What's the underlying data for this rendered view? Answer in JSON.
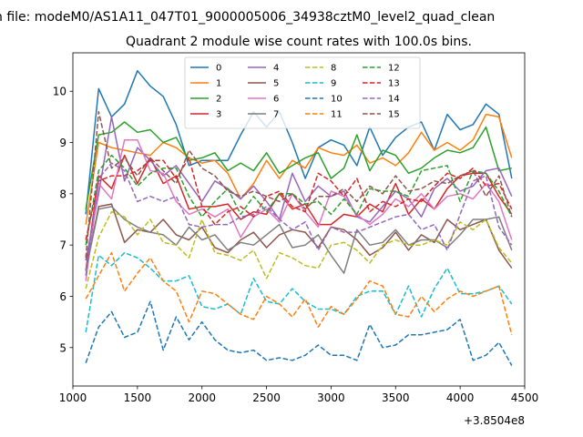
{
  "figure": {
    "suptitle": "n file: modeM0/AS1A11_047T01_9000005006_34938cztM0_level2_quad_clean",
    "title": "Quadrant 2 module wise count rates with 100.0s bins.",
    "offset_label": "+3.8504e8"
  },
  "chart_data": {
    "type": "line",
    "title": "Quadrant 2 module wise count rates with 100.0s bins.",
    "xlabel": "",
    "ylabel": "",
    "x_offset": 385040000,
    "xlim": [
      1000,
      4500
    ],
    "ylim": [
      4.25,
      10.75
    ],
    "xticks": [
      1000,
      1500,
      2000,
      2500,
      3000,
      3500,
      4000,
      4500
    ],
    "yticks": [
      5,
      6,
      7,
      8,
      9,
      10
    ],
    "legend_position": "upper center",
    "grid": false,
    "x": [
      1100,
      1200,
      1300,
      1400,
      1500,
      1600,
      1700,
      1800,
      1900,
      2000,
      2100,
      2200,
      2300,
      2400,
      2500,
      2600,
      2700,
      2800,
      2900,
      3000,
      3100,
      3200,
      3300,
      3400,
      3500,
      3600,
      3700,
      3800,
      3900,
      4000,
      4100,
      4200,
      4300,
      4400
    ],
    "series": [
      {
        "name": "0",
        "color": "#1f77b4",
        "dash": "solid",
        "values": [
          7.6,
          10.05,
          9.5,
          9.75,
          10.4,
          10.1,
          9.9,
          9.35,
          8.55,
          8.65,
          8.65,
          8.65,
          9.15,
          9.6,
          9.3,
          9.6,
          9.0,
          8.3,
          8.9,
          9.05,
          8.95,
          8.55,
          9.3,
          8.75,
          9.1,
          9.3,
          9.4,
          8.85,
          9.55,
          9.25,
          9.35,
          9.75,
          9.55,
          8.3
        ]
      },
      {
        "name": "1",
        "color": "#ff7f0e",
        "dash": "solid",
        "values": [
          7.4,
          9.0,
          8.9,
          8.85,
          8.8,
          8.75,
          9.0,
          8.9,
          8.7,
          8.6,
          8.65,
          8.4,
          7.9,
          8.2,
          8.65,
          8.3,
          8.65,
          8.5,
          8.9,
          8.8,
          8.75,
          8.95,
          8.6,
          8.7,
          8.55,
          8.8,
          9.2,
          8.85,
          9.0,
          8.85,
          9.05,
          9.55,
          9.5,
          8.7
        ]
      },
      {
        "name": "2",
        "color": "#2ca02c",
        "dash": "solid",
        "values": [
          7.7,
          9.15,
          9.2,
          9.4,
          9.2,
          9.25,
          9.0,
          9.1,
          8.65,
          8.7,
          8.8,
          8.45,
          8.6,
          8.45,
          8.8,
          8.4,
          8.55,
          8.7,
          8.8,
          8.3,
          8.5,
          9.15,
          8.45,
          8.85,
          8.75,
          8.4,
          8.5,
          8.7,
          8.85,
          8.8,
          8.9,
          9.3,
          8.45,
          8.5
        ]
      },
      {
        "name": "3",
        "color": "#d62728",
        "dash": "solid",
        "values": [
          6.5,
          8.35,
          8.1,
          8.75,
          8.2,
          8.7,
          8.2,
          8.35,
          7.7,
          7.75,
          7.75,
          7.8,
          7.5,
          7.65,
          7.6,
          8.0,
          7.7,
          7.8,
          7.4,
          7.4,
          7.6,
          7.55,
          7.8,
          7.65,
          8.2,
          7.6,
          7.9,
          7.7,
          8.1,
          8.35,
          8.4,
          8.4,
          7.95,
          7.6
        ]
      },
      {
        "name": "4",
        "color": "#9467bd",
        "dash": "solid",
        "values": [
          6.7,
          8.0,
          9.5,
          8.25,
          8.9,
          8.65,
          8.35,
          8.55,
          8.2,
          7.85,
          8.25,
          8.1,
          7.9,
          8.15,
          7.85,
          7.5,
          8.4,
          7.85,
          8.15,
          7.95,
          8.05,
          7.55,
          7.45,
          7.75,
          8.05,
          7.9,
          7.55,
          8.1,
          8.3,
          8.05,
          8.15,
          8.45,
          8.5,
          7.95
        ]
      },
      {
        "name": "5",
        "color": "#8c564b",
        "dash": "solid",
        "values": [
          6.5,
          7.75,
          7.8,
          7.05,
          7.3,
          7.25,
          7.5,
          7.2,
          7.1,
          7.35,
          6.95,
          6.85,
          7.1,
          7.25,
          6.95,
          7.2,
          7.3,
          7.25,
          6.95,
          7.35,
          7.3,
          7.1,
          6.8,
          6.95,
          7.25,
          6.9,
          7.2,
          7.05,
          7.5,
          7.3,
          7.4,
          7.5,
          6.9,
          6.55
        ]
      },
      {
        "name": "6",
        "color": "#e377c2",
        "dash": "solid",
        "values": [
          6.3,
          8.2,
          7.9,
          9.05,
          9.05,
          8.45,
          8.4,
          7.85,
          7.6,
          7.7,
          7.55,
          7.7,
          7.15,
          7.55,
          7.7,
          7.45,
          8.0,
          7.65,
          7.35,
          8.05,
          7.95,
          7.6,
          7.4,
          7.6,
          7.9,
          7.75,
          8.0,
          7.7,
          7.95,
          8.0,
          7.9,
          8.2,
          7.85,
          7.1
        ]
      },
      {
        "name": "7",
        "color": "#7f7f7f",
        "dash": "solid",
        "values": [
          6.5,
          7.7,
          7.75,
          7.5,
          7.35,
          7.25,
          7.2,
          7.0,
          7.35,
          7.1,
          7.2,
          6.9,
          7.05,
          7.0,
          7.2,
          7.4,
          6.95,
          7.0,
          7.2,
          6.8,
          6.45,
          7.3,
          7.0,
          7.05,
          7.3,
          7.0,
          7.1,
          7.1,
          6.95,
          7.2,
          7.5,
          7.5,
          7.55,
          6.9
        ]
      },
      {
        "name": "8",
        "color": "#bcbd22",
        "dash": "dashed",
        "values": [
          6.15,
          7.15,
          7.65,
          7.55,
          7.2,
          7.5,
          7.05,
          7.0,
          6.75,
          7.5,
          6.85,
          6.8,
          6.7,
          6.9,
          6.35,
          6.85,
          6.75,
          6.6,
          6.55,
          7.0,
          7.05,
          6.9,
          6.65,
          7.0,
          7.1,
          7.0,
          7.0,
          7.1,
          7.0,
          7.45,
          7.3,
          7.5,
          6.95,
          6.65
        ]
      },
      {
        "name": "9",
        "color": "#17becf",
        "dash": "dashed",
        "values": [
          5.3,
          6.8,
          6.6,
          6.85,
          6.75,
          6.55,
          6.3,
          6.3,
          6.4,
          5.8,
          5.75,
          5.85,
          5.65,
          6.35,
          5.9,
          5.85,
          6.15,
          5.9,
          5.75,
          5.75,
          5.65,
          6.0,
          6.1,
          6.1,
          5.65,
          6.2,
          5.6,
          6.15,
          6.55,
          6.05,
          6.05,
          6.1,
          6.2,
          5.85
        ]
      },
      {
        "name": "10",
        "color": "#1f77b4",
        "dash": "dashed",
        "values": [
          4.7,
          5.4,
          5.7,
          5.2,
          5.3,
          5.9,
          4.95,
          5.6,
          5.15,
          5.5,
          5.15,
          4.95,
          4.9,
          4.95,
          4.75,
          4.8,
          4.75,
          4.85,
          5.05,
          4.85,
          4.85,
          4.75,
          5.45,
          5.0,
          5.05,
          5.25,
          5.25,
          5.3,
          5.35,
          5.55,
          4.75,
          4.85,
          5.1,
          4.65
        ]
      },
      {
        "name": "11",
        "color": "#ff7f0e",
        "dash": "dashed",
        "values": [
          5.95,
          6.4,
          6.85,
          6.1,
          6.45,
          6.75,
          6.3,
          6.1,
          5.5,
          6.1,
          6.05,
          5.85,
          5.65,
          5.55,
          6.0,
          5.85,
          5.6,
          5.95,
          5.4,
          5.8,
          5.65,
          5.95,
          6.3,
          6.2,
          5.65,
          5.6,
          6.0,
          5.7,
          5.95,
          6.1,
          6.0,
          6.1,
          6.2,
          5.25
        ]
      },
      {
        "name": "12",
        "color": "#2ca02c",
        "dash": "dashed",
        "values": [
          7.0,
          8.45,
          8.75,
          8.5,
          8.15,
          8.4,
          8.5,
          8.5,
          7.95,
          7.55,
          7.85,
          8.1,
          7.6,
          7.95,
          7.65,
          8.0,
          8.0,
          7.8,
          7.85,
          7.6,
          7.9,
          7.6,
          8.1,
          8.05,
          8.05,
          7.95,
          8.45,
          8.5,
          8.55,
          7.85,
          8.45,
          8.4,
          8.05,
          7.55
        ]
      },
      {
        "name": "13",
        "color": "#d62728",
        "dash": "dashed",
        "values": [
          7.1,
          8.25,
          8.35,
          8.35,
          8.45,
          8.65,
          8.65,
          8.3,
          8.7,
          7.75,
          7.4,
          7.65,
          7.75,
          7.55,
          7.95,
          8.05,
          7.75,
          7.65,
          8.4,
          8.25,
          7.95,
          8.3,
          7.65,
          7.85,
          7.75,
          7.9,
          7.85,
          8.15,
          8.4,
          8.3,
          8.5,
          8.15,
          8.2,
          7.7
        ]
      },
      {
        "name": "14",
        "color": "#9467bd",
        "dash": "dashed",
        "values": [
          6.4,
          8.3,
          8.6,
          8.45,
          7.85,
          7.95,
          7.85,
          7.95,
          7.4,
          7.35,
          7.4,
          7.4,
          7.55,
          7.6,
          7.75,
          7.5,
          7.3,
          7.45,
          6.9,
          7.35,
          7.25,
          7.25,
          7.35,
          7.45,
          7.55,
          7.6,
          7.3,
          7.4,
          6.9,
          7.6,
          8.25,
          8.35,
          7.35,
          7.0
        ]
      },
      {
        "name": "15",
        "color": "#8c564b",
        "dash": "dashed",
        "values": [
          6.75,
          9.6,
          8.5,
          8.7,
          8.35,
          8.7,
          8.45,
          8.2,
          8.85,
          8.5,
          8.35,
          8.05,
          7.95,
          8.05,
          7.95,
          7.85,
          8.0,
          7.7,
          7.95,
          7.95,
          8.1,
          7.85,
          8.15,
          8.0,
          8.35,
          8.05,
          8.1,
          8.25,
          8.2,
          8.35,
          8.45,
          7.95,
          8.35,
          7.55
        ]
      }
    ]
  }
}
